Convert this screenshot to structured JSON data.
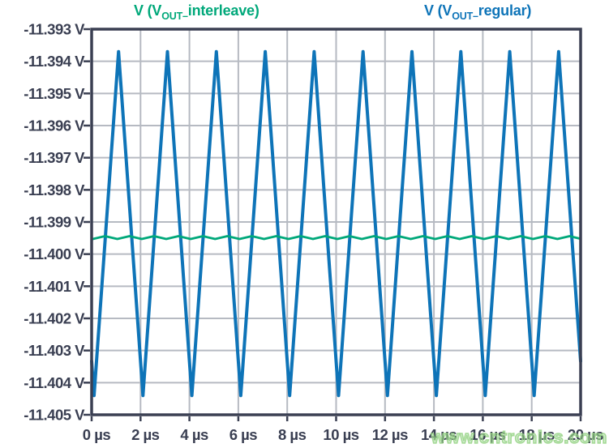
{
  "legend": [
    {
      "id": "interleave",
      "prefix": "V (V",
      "subscript": "OUT–",
      "suffix": "interleave)",
      "color": "#00a87a"
    },
    {
      "id": "regular",
      "prefix": "V (V",
      "subscript": "OUT–",
      "suffix": "regular)",
      "color": "#0e74b8"
    }
  ],
  "watermark": {
    "text": "www.cntronics.com",
    "color": "#9ed795"
  },
  "chart_data": {
    "type": "line",
    "title": "",
    "text_color": "#3a3f52",
    "grid": {
      "show": true,
      "color": "#b6bac2",
      "border_color": "#3a3f52",
      "tick_color": "#3a3f52"
    },
    "x_axis": {
      "label": "",
      "unit": "µs",
      "min": 0,
      "max": 20,
      "tick_values": [
        0,
        2,
        4,
        6,
        8,
        10,
        12,
        14,
        16,
        18,
        20
      ],
      "tick_labels": [
        "0 µs",
        "2 µs",
        "4 µs",
        "6 µs",
        "8 µs",
        "10 µs",
        "12 µs",
        "14 µs",
        "16 µs",
        "18 µs",
        "20 µs"
      ]
    },
    "y_axis": {
      "label": "",
      "unit": "V",
      "min": -11.405,
      "max": -11.393,
      "tick_values": [
        -11.393,
        -11.394,
        -11.395,
        -11.396,
        -11.397,
        -11.398,
        -11.399,
        -11.4,
        -11.401,
        -11.402,
        -11.403,
        -11.404,
        -11.405
      ],
      "tick_labels": [
        "-11.393 V",
        "-11.394 V",
        "-11.395 V",
        "-11.396 V",
        "-11.397 V",
        "-11.398 V",
        "-11.399 V",
        "-11.400 V",
        "-11.401 V",
        "-11.402 V",
        "-11.403 V",
        "-11.404 V",
        "-11.405 V"
      ]
    },
    "series": [
      {
        "id": "interleave",
        "name": "V (V_OUT–interleave)",
        "waveform": "triangle",
        "color": "#00a87a",
        "stroke_width": 2.8,
        "period_us": 1,
        "peak_time_us": 0.55,
        "v_min": -11.39953,
        "v_max": -11.39944
      },
      {
        "id": "regular",
        "name": "V (V_OUT–regular)",
        "waveform": "triangle",
        "color": "#0e74b8",
        "stroke_width": 4,
        "period_us": 2,
        "peak_time_us": 1.1,
        "v_min": -11.4044,
        "v_max": -11.3937
      }
    ]
  }
}
